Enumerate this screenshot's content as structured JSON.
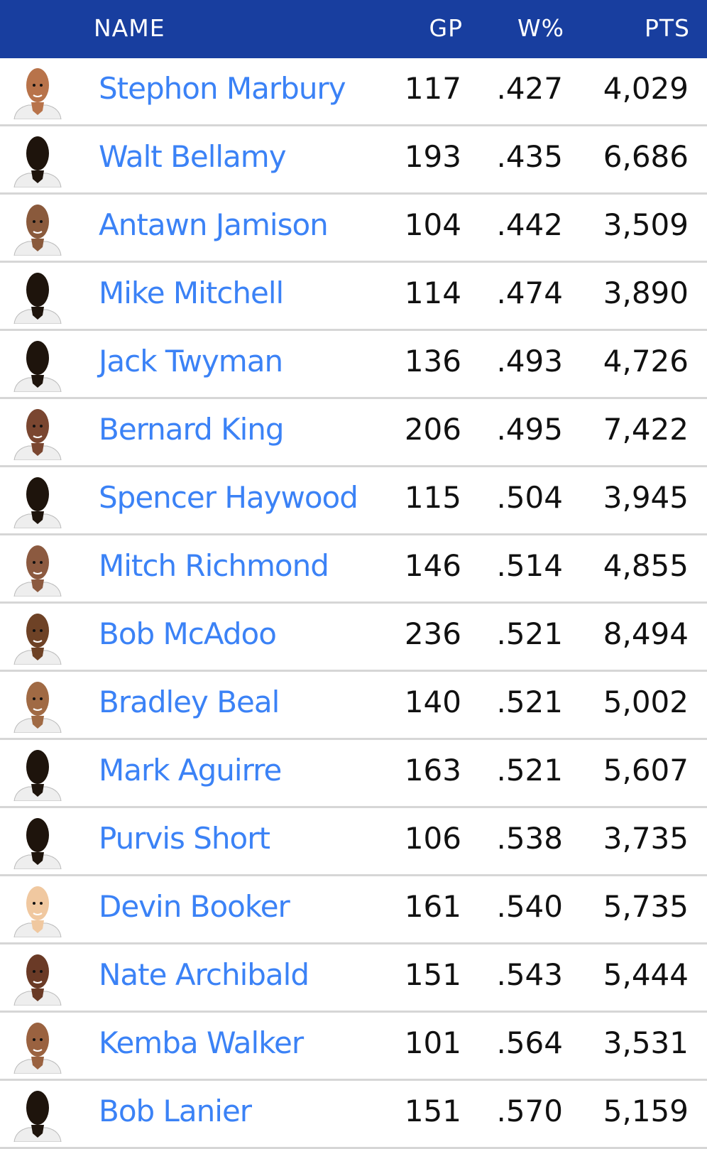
{
  "header": {
    "name": "NAME",
    "gp": "GP",
    "w_pct": "W%",
    "pts": "PTS"
  },
  "colors": {
    "header_bg": "#183e9f",
    "link": "#3b82f6",
    "silhouette": "#1e140c"
  },
  "rows": [
    {
      "name": "Stephon Marbury",
      "gp": "117",
      "w_pct": ".427",
      "pts": "4,029",
      "avatar": "photo",
      "skin": "#b8734a"
    },
    {
      "name": "Walt Bellamy",
      "gp": "193",
      "w_pct": ".435",
      "pts": "6,686",
      "avatar": "silhouette",
      "skin": "#1e140c"
    },
    {
      "name": "Antawn Jamison",
      "gp": "104",
      "w_pct": ".442",
      "pts": "3,509",
      "avatar": "photo",
      "skin": "#8a5a3c"
    },
    {
      "name": "Mike Mitchell",
      "gp": "114",
      "w_pct": ".474",
      "pts": "3,890",
      "avatar": "silhouette",
      "skin": "#1e140c"
    },
    {
      "name": "Jack Twyman",
      "gp": "136",
      "w_pct": ".493",
      "pts": "4,726",
      "avatar": "silhouette",
      "skin": "#1e140c"
    },
    {
      "name": "Bernard King",
      "gp": "206",
      "w_pct": ".495",
      "pts": "7,422",
      "avatar": "photo",
      "skin": "#7a4630"
    },
    {
      "name": "Spencer Haywood",
      "gp": "115",
      "w_pct": ".504",
      "pts": "3,945",
      "avatar": "silhouette",
      "skin": "#1e140c"
    },
    {
      "name": "Mitch Richmond",
      "gp": "146",
      "w_pct": ".514",
      "pts": "4,855",
      "avatar": "photo",
      "skin": "#8c5a40"
    },
    {
      "name": "Bob McAdoo",
      "gp": "236",
      "w_pct": ".521",
      "pts": "8,494",
      "avatar": "photo",
      "skin": "#6e4226"
    },
    {
      "name": "Bradley Beal",
      "gp": "140",
      "w_pct": ".521",
      "pts": "5,002",
      "avatar": "photo",
      "skin": "#a06a44"
    },
    {
      "name": "Mark Aguirre",
      "gp": "163",
      "w_pct": ".521",
      "pts": "5,607",
      "avatar": "silhouette",
      "skin": "#1e140c"
    },
    {
      "name": "Purvis Short",
      "gp": "106",
      "w_pct": ".538",
      "pts": "3,735",
      "avatar": "silhouette",
      "skin": "#1e140c"
    },
    {
      "name": "Devin Booker",
      "gp": "161",
      "w_pct": ".540",
      "pts": "5,735",
      "avatar": "photo",
      "skin": "#f0c8a0"
    },
    {
      "name": "Nate Archibald",
      "gp": "151",
      "w_pct": ".543",
      "pts": "5,444",
      "avatar": "photo",
      "skin": "#6a3a26"
    },
    {
      "name": "Kemba Walker",
      "gp": "101",
      "w_pct": ".564",
      "pts": "3,531",
      "avatar": "photo",
      "skin": "#9a6240"
    },
    {
      "name": "Bob Lanier",
      "gp": "151",
      "w_pct": ".570",
      "pts": "5,159",
      "avatar": "silhouette",
      "skin": "#1e140c"
    }
  ]
}
